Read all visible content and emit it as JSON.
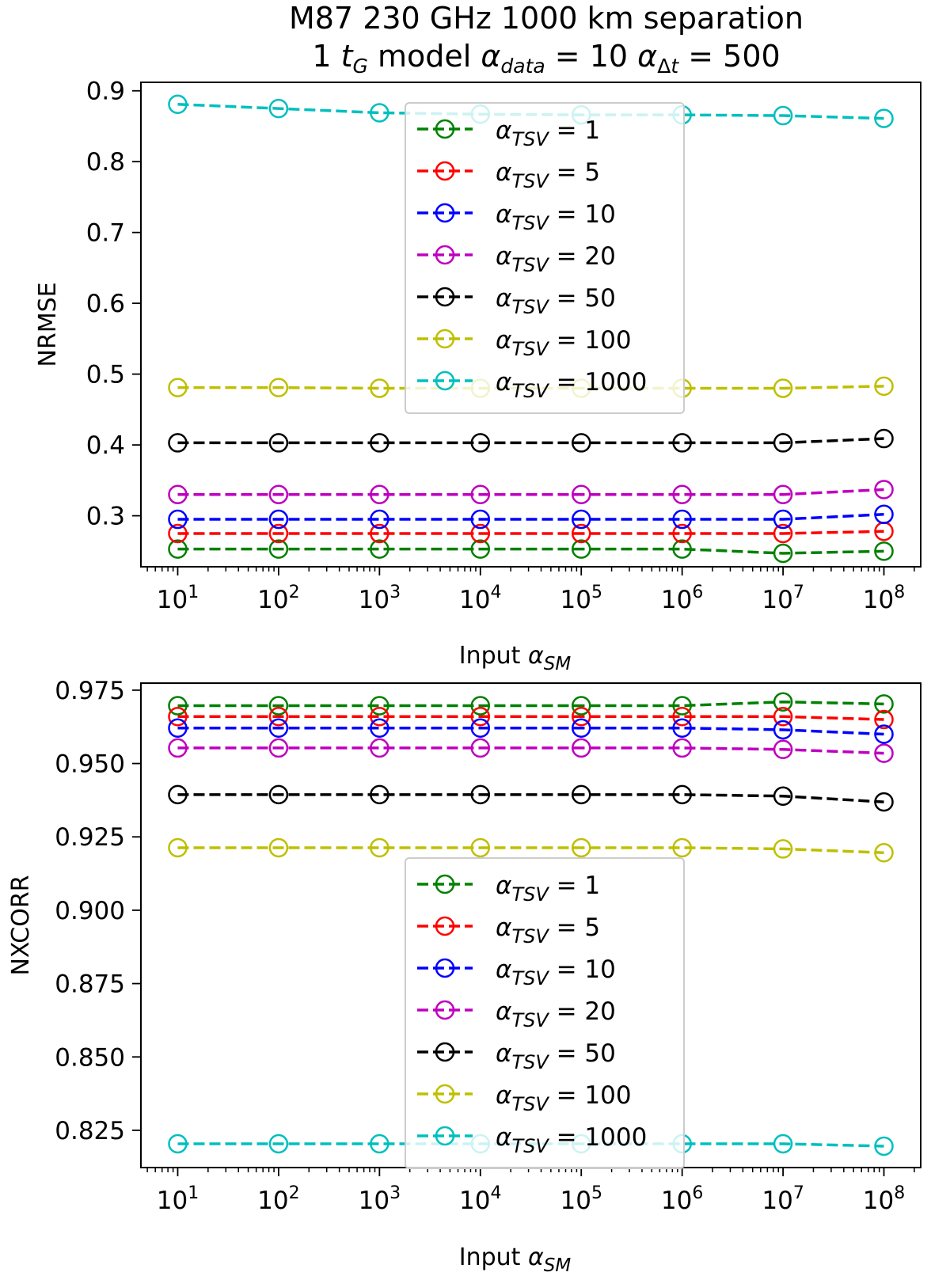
{
  "figure": {
    "title_line1": "M87   230 GHz   1000 km separation",
    "title_line2": "1 tG model      αdata = 10   αΔt = 500"
  },
  "series_colors": {
    "α_TSV = 1": "#008000",
    "α_TSV = 5": "#ff0000",
    "α_TSV = 10": "#0000ff",
    "α_TSV = 20": "#bf00bf",
    "α_TSV = 50": "#000000",
    "α_TSV = 100": "#bfbf00",
    "α_TSV = 1000": "#00bfbf"
  },
  "chart_data": [
    {
      "type": "line",
      "xscale": "log",
      "xlabel": "Input α_SM",
      "ylabel": "NRMSE",
      "x": [
        10,
        100,
        1000,
        10000,
        100000,
        1000000,
        10000000,
        100000000
      ],
      "x_tick_labels": [
        "10^1",
        "10^2",
        "10^3",
        "10^4",
        "10^5",
        "10^6",
        "10^7",
        "10^8"
      ],
      "ylim": [
        0.228,
        0.912
      ],
      "y_ticks": [
        "0.3",
        "0.4",
        "0.5",
        "0.6",
        "0.7",
        "0.8",
        "0.9"
      ],
      "legend_position": "upper center",
      "series": [
        {
          "name": "α_TSV = 1",
          "values": [
            0.253,
            0.253,
            0.253,
            0.253,
            0.253,
            0.253,
            0.247,
            0.25
          ]
        },
        {
          "name": "α_TSV = 5",
          "values": [
            0.275,
            0.275,
            0.275,
            0.275,
            0.275,
            0.275,
            0.275,
            0.278
          ]
        },
        {
          "name": "α_TSV = 10",
          "values": [
            0.295,
            0.295,
            0.295,
            0.295,
            0.295,
            0.295,
            0.295,
            0.302
          ]
        },
        {
          "name": "α_TSV = 20",
          "values": [
            0.33,
            0.33,
            0.33,
            0.33,
            0.33,
            0.33,
            0.33,
            0.337
          ]
        },
        {
          "name": "α_TSV = 50",
          "values": [
            0.403,
            0.403,
            0.403,
            0.403,
            0.403,
            0.403,
            0.403,
            0.409
          ]
        },
        {
          "name": "α_TSV = 100",
          "values": [
            0.481,
            0.481,
            0.48,
            0.48,
            0.48,
            0.48,
            0.48,
            0.483
          ]
        },
        {
          "name": "α_TSV = 1000",
          "values": [
            0.881,
            0.875,
            0.869,
            0.867,
            0.866,
            0.866,
            0.865,
            0.861
          ]
        }
      ]
    },
    {
      "type": "line",
      "xscale": "log",
      "xlabel": "Input α_SM",
      "ylabel": "NXCORR",
      "x": [
        10,
        100,
        1000,
        10000,
        100000,
        1000000,
        10000000,
        100000000
      ],
      "x_tick_labels": [
        "10^1",
        "10^2",
        "10^3",
        "10^4",
        "10^5",
        "10^6",
        "10^7",
        "10^8"
      ],
      "ylim": [
        0.8123,
        0.9774
      ],
      "y_ticks": [
        "0.825",
        "0.850",
        "0.875",
        "0.900",
        "0.925",
        "0.950",
        "0.975"
      ],
      "legend_position": "lower center",
      "series": [
        {
          "name": "α_TSV = 1",
          "values": [
            0.9697,
            0.9697,
            0.9697,
            0.9697,
            0.9697,
            0.9697,
            0.971,
            0.9703
          ]
        },
        {
          "name": "α_TSV = 5",
          "values": [
            0.966,
            0.966,
            0.966,
            0.966,
            0.966,
            0.966,
            0.966,
            0.965
          ]
        },
        {
          "name": "α_TSV = 10",
          "values": [
            0.9621,
            0.9621,
            0.9621,
            0.9621,
            0.9621,
            0.9621,
            0.9615,
            0.96
          ]
        },
        {
          "name": "α_TSV = 20",
          "values": [
            0.9553,
            0.9553,
            0.9553,
            0.9553,
            0.9553,
            0.9553,
            0.9548,
            0.9535
          ]
        },
        {
          "name": "α_TSV = 50",
          "values": [
            0.9394,
            0.9394,
            0.9394,
            0.9394,
            0.9394,
            0.9394,
            0.9389,
            0.9369
          ]
        },
        {
          "name": "α_TSV = 100",
          "values": [
            0.9213,
            0.9213,
            0.9213,
            0.9213,
            0.9213,
            0.9213,
            0.9209,
            0.9196
          ]
        },
        {
          "name": "α_TSV = 1000",
          "values": [
            0.8204,
            0.8204,
            0.8204,
            0.8204,
            0.8204,
            0.8204,
            0.8204,
            0.8196
          ]
        }
      ]
    }
  ]
}
